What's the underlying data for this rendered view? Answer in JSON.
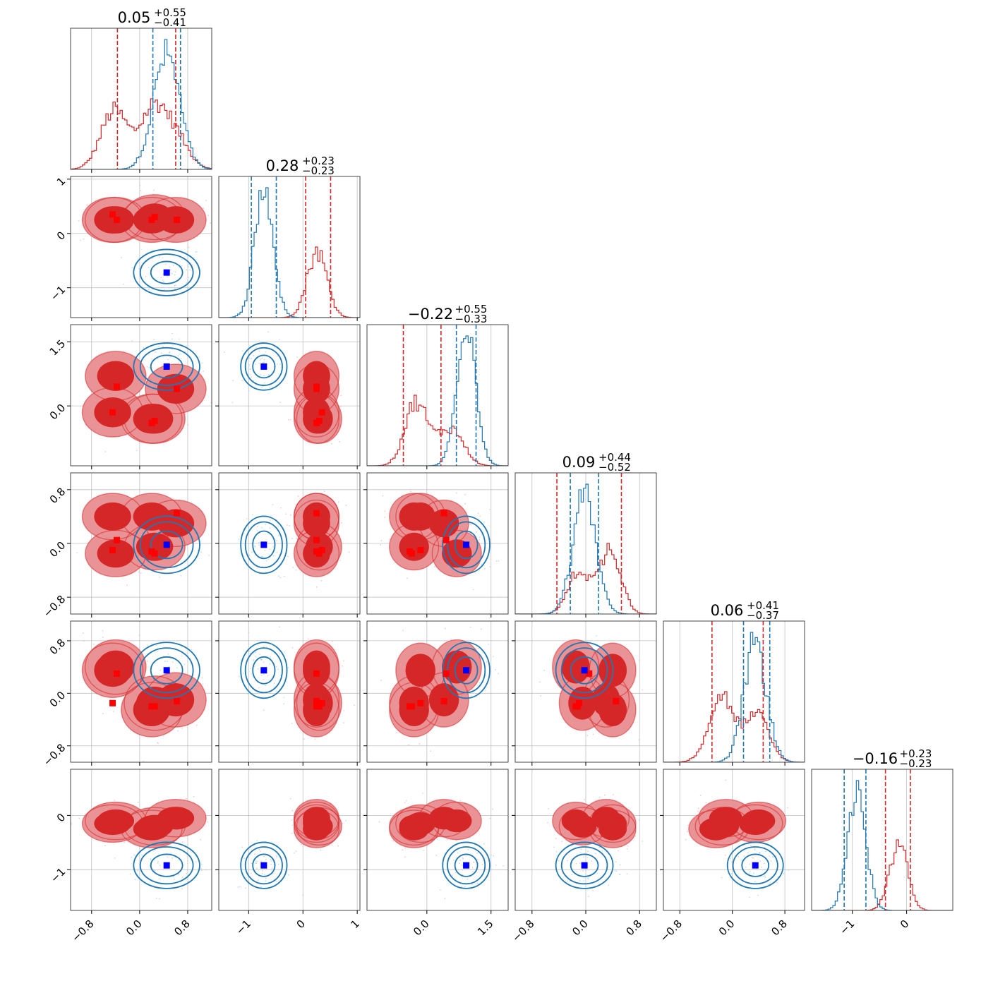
{
  "chart_data": {
    "type": "corner",
    "n_params": 6,
    "colors": {
      "red": "#d62728",
      "red_fill_inner": "#d62728",
      "red_fill_outer": "#ea9396",
      "blue": "#1f77b4",
      "red_marker": "#ff0000",
      "blue_marker": "#0000ff"
    },
    "ranges": [
      [
        -1.15,
        1.2
      ],
      [
        -1.55,
        1.05
      ],
      [
        -1.4,
        1.9
      ],
      [
        -1.05,
        1.05
      ],
      [
        -1.05,
        1.1
      ],
      [
        -1.75,
        0.85
      ]
    ],
    "ticks": [
      {
        "values": [
          -0.8,
          0.0,
          0.8
        ],
        "labels": [
          "−0.8",
          "0.0",
          "0.8"
        ]
      },
      {
        "values": [
          -1,
          0,
          1
        ],
        "labels": [
          "−1",
          "0",
          "1"
        ]
      },
      {
        "values": [
          0.0,
          1.5
        ],
        "labels": [
          "0.0",
          "1.5"
        ]
      },
      {
        "values": [
          -0.8,
          0.0,
          0.8
        ],
        "labels": [
          "−0.8",
          "0.0",
          "0.8"
        ]
      },
      {
        "values": [
          -0.8,
          0.0,
          0.8
        ],
        "labels": [
          "−0.8",
          "0.0",
          "0.8"
        ]
      },
      {
        "values": [
          -1,
          0
        ],
        "labels": [
          "−1",
          "0"
        ]
      }
    ],
    "titles": [
      {
        "center": "0.05",
        "plus": "+0.55",
        "minus": "−0.41"
      },
      {
        "center": "0.28",
        "plus": "+0.23",
        "minus": "−0.23"
      },
      {
        "center": "−0.22",
        "plus": "+0.55",
        "minus": "−0.33"
      },
      {
        "center": "0.09",
        "plus": "+0.44",
        "minus": "−0.52"
      },
      {
        "center": "0.06",
        "plus": "+0.41",
        "minus": "−0.37"
      },
      {
        "center": "−0.16",
        "plus": "+0.23",
        "minus": "−0.23"
      }
    ],
    "red_components": [
      [
        -0.45,
        0.25,
        -0.15,
        0.4,
        0.35,
        -0.15
      ],
      [
        -0.4,
        0.25,
        0.7,
        -0.15,
        0.4,
        -0.1
      ],
      [
        0.2,
        0.25,
        -0.3,
        0.4,
        -0.25,
        -0.25
      ],
      [
        0.6,
        0.25,
        0.4,
        0.3,
        -0.1,
        -0.05
      ],
      [
        0.25,
        0.3,
        -0.3,
        -0.05,
        -0.15,
        -0.2
      ]
    ],
    "red_sigma": [
      0.22,
      0.18,
      0.25,
      0.15,
      0.18,
      0.15
    ],
    "blue_mean": [
      0.45,
      -0.72,
      0.92,
      -0.02,
      0.35,
      -0.92
    ],
    "blue_sigma": [
      0.22,
      0.17,
      0.22,
      0.17,
      0.17,
      0.17
    ],
    "red_quantiles": [
      [
        -0.37,
        0.6
      ],
      [
        0.05,
        0.51
      ],
      [
        -0.55,
        0.33
      ],
      [
        -0.43,
        0.53
      ],
      [
        -0.31,
        0.47
      ],
      [
        -0.39,
        0.07
      ]
    ],
    "blue_quantiles": [
      [
        0.22,
        0.68
      ],
      [
        -0.95,
        -0.49
      ],
      [
        0.69,
        1.15
      ],
      [
        -0.23,
        0.19
      ],
      [
        0.17,
        0.57
      ],
      [
        -1.15,
        -0.75
      ]
    ],
    "red_markers": [
      [
        -0.45,
        0.35,
        -0.15,
        -0.1,
        -0.15
      ],
      [
        -0.38,
        0.25,
        0.45,
        0.05,
        0.3
      ],
      [
        0.2,
        0.25,
        -0.4,
        -0.12,
        -0.2
      ],
      [
        0.62,
        0.25,
        0.4,
        0.45,
        -0.12
      ],
      [
        0.25,
        0.3,
        -0.35,
        -0.15,
        -0.2
      ]
    ],
    "blue_marker": [
      0.45,
      -0.72,
      0.92,
      -0.02,
      0.35,
      -0.92
    ]
  }
}
